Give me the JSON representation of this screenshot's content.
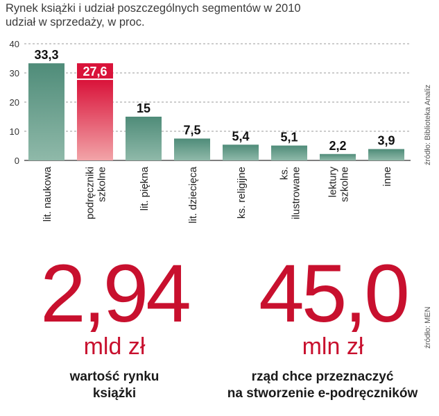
{
  "header": {
    "title": "Rynek książki i udział poszczególnych segmentów  w 2010",
    "subtitle": "udział w sprzedaży, w proc."
  },
  "chart_data": {
    "type": "bar",
    "title": "Rynek książki i udział poszczególnych segmentów  w 2010",
    "ylabel": "",
    "xlabel": "",
    "ylim": [
      0,
      40
    ],
    "yticks": [
      0,
      10,
      20,
      30,
      40
    ],
    "grid": true,
    "categories": [
      [
        "lit. naukowa"
      ],
      [
        "podręczniki",
        "szkolne"
      ],
      [
        "lit. piękna"
      ],
      [
        "lit. dziecięca"
      ],
      [
        "ks. religijne"
      ],
      [
        "ks.",
        "ilustrowane"
      ],
      [
        "lektury",
        "szkolne"
      ],
      [
        "inne"
      ]
    ],
    "values": [
      33.3,
      27.6,
      15,
      7.5,
      5.4,
      5.1,
      2.2,
      3.9
    ],
    "value_labels": [
      "33,3",
      "27,6",
      "15",
      "7,5",
      "5,4",
      "5,1",
      "2,2",
      "3,9"
    ],
    "highlight_index": 1,
    "colors": {
      "bar": "#4f8c79",
      "bar_light": "#8fb9a9",
      "highlight": "#d9133a",
      "highlight_light": "#f2a4a8"
    }
  },
  "sources": {
    "chart": "źródło: Biblioteka Analiz",
    "stats": "źródło: MEN"
  },
  "stats": [
    {
      "value": "2,94",
      "unit": "mld zł",
      "caption": [
        "wartość rynku",
        "książki"
      ]
    },
    {
      "value": "45,0",
      "unit": "mln zł",
      "caption": [
        "rząd chce przeznaczyć",
        "na stworzenie e-podręczników"
      ]
    }
  ],
  "accent_color": "#c8102e"
}
